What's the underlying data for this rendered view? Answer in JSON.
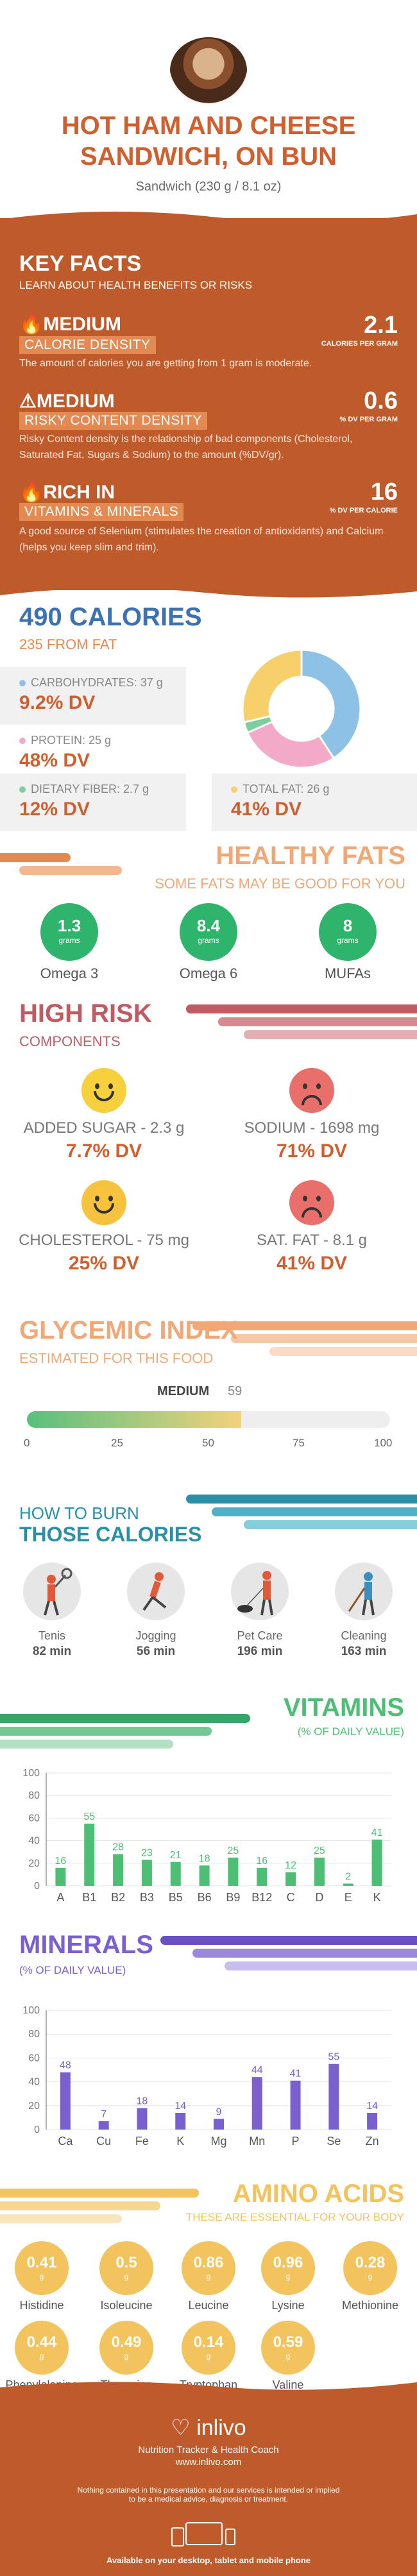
{
  "header": {
    "title_line1": "HOT HAM AND CHEESE",
    "title_line2": "SANDWICH, ON BUN",
    "subtitle": "Sandwich (230 g / 8.1 oz)"
  },
  "key_facts": {
    "title": "KEY FACTS",
    "subtitle": "LEARN ABOUT HEALTH BENEFITS OR RISKS",
    "items": [
      {
        "level": "MEDIUM",
        "label": "CALORIE DENSITY",
        "value": "2.1",
        "unit": "CALORIES PER GRAM",
        "icon": "flame-icon",
        "desc": "The amount of calories you are getting from 1 gram is moderate."
      },
      {
        "level": "MEDIUM",
        "label": "RISKY CONTENT DENSITY",
        "value": "0.6",
        "unit": "% DV PER GRAM",
        "icon": "warning-icon",
        "desc": "Risky Content density is the relationship of bad components (Cholesterol, Saturated Fat, Sugars & Sodium) to the amount (%DV/gr)."
      },
      {
        "level": "RICH  IN",
        "label": "VITAMINS & MINERALS",
        "value": "16",
        "unit": "% DV PER CALORIE",
        "icon": "flame-icon",
        "desc": "A good source of Selenium (stimulates the creation of antioxidants) and Calcium (helps you keep slim and trim)."
      }
    ]
  },
  "calories": {
    "title": "490 CALORIES",
    "subtitle": "235 FROM FAT",
    "macros": [
      {
        "label": "CARBOHYDRATES: 37 g",
        "dv": "9.2% DV",
        "color": "#8ec1e6"
      },
      {
        "label": "PROTEIN: 25 g",
        "dv": "48% DV",
        "color": "#f3a9c8"
      },
      {
        "label": "DIETARY FIBER: 2.7 g",
        "dv": "12% DV",
        "color": "#7ccf9c"
      },
      {
        "label": "TOTAL FAT: 26 g",
        "dv": "41% DV",
        "color": "#f7cf6b"
      }
    ]
  },
  "healthy_fats": {
    "title": "HEALTHY FATS",
    "subtitle": "SOME FATS MAY BE GOOD FOR YOU",
    "items": [
      {
        "value": "1.3",
        "unit": "grams",
        "label": "Omega 3"
      },
      {
        "value": "8.4",
        "unit": "grams",
        "label": "Omega 6"
      },
      {
        "value": "8",
        "unit": "grams",
        "label": "MUFAs"
      }
    ]
  },
  "high_risk": {
    "title": "HIGH RISK",
    "subtitle": "COMPONENTS",
    "items": [
      {
        "label": "ADDED SUGAR - 2.3 g",
        "dv": "7.7% DV",
        "mood": "happy",
        "color": "#f7d03e"
      },
      {
        "label": "SODIUM - 1698 mg",
        "dv": "71% DV",
        "mood": "sad",
        "color": "#e9706a"
      },
      {
        "label": "CHOLESTEROL - 75 mg",
        "dv": "25% DV",
        "mood": "happy",
        "color": "#f7c23e"
      },
      {
        "label": "SAT. FAT - 8.1 g",
        "dv": "41% DV",
        "mood": "sad",
        "color": "#e9706a"
      }
    ]
  },
  "glycemic": {
    "title": "GLYCEMIC INDEX",
    "subtitle": "ESTIMATED FOR THIS FOOD",
    "level": "MEDIUM",
    "value": 59,
    "value_label": "59",
    "ticks": [
      "0",
      "25",
      "50",
      "75",
      "100"
    ]
  },
  "burn": {
    "title1": "HOW TO BURN",
    "title2": "THOSE CALORIES",
    "items": [
      {
        "label": "Tenis",
        "min": "82 min"
      },
      {
        "label": "Jogging",
        "min": "56 min"
      },
      {
        "label": "Pet Care",
        "min": "196 min"
      },
      {
        "label": "Cleaning",
        "min": "163 min"
      }
    ]
  },
  "vitamins": {
    "title": "VITAMINS",
    "subtitle": "(% OF DAILY VALUE)",
    "color": "#4cbf74"
  },
  "minerals": {
    "title": "MINERALS",
    "subtitle": "(% OF DAILY VALUE)",
    "color": "#7a5fcf"
  },
  "chart_data": [
    {
      "type": "pie",
      "categories": [
        "Carbohydrates",
        "Protein",
        "Dietary Fiber",
        "Total Fat"
      ],
      "values": [
        37,
        25,
        2.7,
        26
      ],
      "colors": [
        "#8ec1e6",
        "#f3a9c8",
        "#7ccf9c",
        "#f7cf6b"
      ]
    },
    {
      "type": "bar",
      "title": "VITAMINS",
      "categories": [
        "A",
        "B1",
        "B2",
        "B3",
        "B5",
        "B6",
        "B9",
        "B12",
        "C",
        "D",
        "E",
        "K"
      ],
      "values": [
        16,
        55,
        28,
        23,
        21,
        18,
        25,
        16,
        12,
        25,
        2,
        41
      ],
      "ylim": [
        0,
        100
      ],
      "yticks": [
        "0",
        "20",
        "40",
        "60",
        "80",
        "100"
      ]
    },
    {
      "type": "bar",
      "title": "MINERALS",
      "categories": [
        "Ca",
        "Cu",
        "Fe",
        "K",
        "Mg",
        "Mn",
        "P",
        "Se",
        "Zn"
      ],
      "values": [
        48,
        7,
        18,
        14,
        9,
        44,
        41,
        55,
        14
      ],
      "ylim": [
        0,
        100
      ],
      "yticks": [
        "0",
        "20",
        "40",
        "60",
        "80",
        "100"
      ]
    }
  ],
  "amino_acids": {
    "title": "AMINO ACIDS",
    "subtitle": "THESE ARE ESSENTIAL FOR YOUR BODY",
    "items": [
      {
        "value": "0.41",
        "unit": "g",
        "label": "Histidine"
      },
      {
        "value": "0.5",
        "unit": "g",
        "label": "Isoleucine"
      },
      {
        "value": "0.86",
        "unit": "g",
        "label": "Leucine"
      },
      {
        "value": "0.96",
        "unit": "g",
        "label": "Lysine"
      },
      {
        "value": "0.28",
        "unit": "g",
        "label": "Methionine"
      },
      {
        "value": "0.44",
        "unit": "g",
        "label": "Phenylalanine"
      },
      {
        "value": "0.49",
        "unit": "g",
        "label": "Threonine"
      },
      {
        "value": "0.14",
        "unit": "g",
        "label": "Tryptophan"
      },
      {
        "value": "0.59",
        "unit": "g",
        "label": "Valine"
      }
    ]
  },
  "footer": {
    "brand": "inlivo",
    "tagline": "Nutrition Tracker & Health Coach",
    "url": "www.inlivo.com",
    "disclaimer1": "Nothing contained in this presentation and our services is intended or implied",
    "disclaimer2": "to be a medical advice, diagnosis or treatment.",
    "available": "Available on your desktop, tablet and mobile phone"
  }
}
